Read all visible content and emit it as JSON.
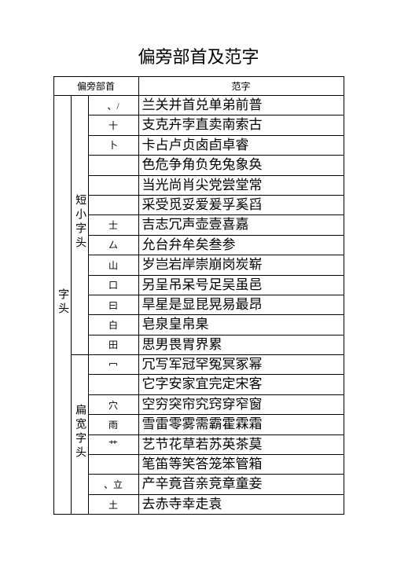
{
  "title": "偏旁部首及范字",
  "header": {
    "left": "偏旁部首",
    "right": "范字"
  },
  "col_a_label": "字头",
  "groups": [
    {
      "label": "短小字头",
      "rows": [
        {
          "radical": "、/",
          "chars": "兰关并首兑单弟前普"
        },
        {
          "radical": "十",
          "chars": "支克卉孛直卖南索古"
        },
        {
          "radical": "卜",
          "chars": "卡占卢贞卤卣卓睿"
        },
        {
          "radical": "",
          "chars": "色危争角负免兔象奂"
        },
        {
          "radical": "",
          "chars": "当光尚肖尖党尝堂常"
        },
        {
          "radical": "",
          "chars": "采受觅妥爱爰孚奚舀"
        },
        {
          "radical": "士",
          "chars": "吉志冗声壶壹喜嘉"
        },
        {
          "radical": "厶",
          "chars": "允台弁牟矣叁参"
        },
        {
          "radical": "山",
          "chars": "岁岂岩岸崇崩岗炭崭"
        },
        {
          "radical": "口",
          "chars": "另呈吊呆号足吴虽邑"
        },
        {
          "radical": "曰",
          "chars": "旱星是显昆晃易最昂"
        },
        {
          "radical": "白",
          "chars": "皂泉皇帛臬"
        },
        {
          "radical": "田",
          "chars": "思男畏胃界累"
        }
      ]
    },
    {
      "label": "扁宽字头",
      "rows": [
        {
          "radical": "冖",
          "chars": "冗写军冠罕冤冥冢幂"
        },
        {
          "radical": "",
          "chars": "它字安家宜完定宋客"
        },
        {
          "radical": "穴",
          "chars": "空穷突帘究窍穿窄窗"
        },
        {
          "radical": "雨",
          "chars": "雪雷零雾需霸霍霖霜"
        },
        {
          "radical": "艹",
          "chars": "艺节花草若苏英茶莫"
        },
        {
          "radical": "",
          "chars": "笔笛等笑答笼笨管箱"
        },
        {
          "radical": "、立",
          "chars": "产辛竟音亲竞章童妾"
        },
        {
          "radical": "土",
          "chars": "去赤寺幸走袁"
        }
      ]
    }
  ],
  "colors": {
    "background": "#ffffff",
    "text": "#000000",
    "border": "#000000"
  }
}
